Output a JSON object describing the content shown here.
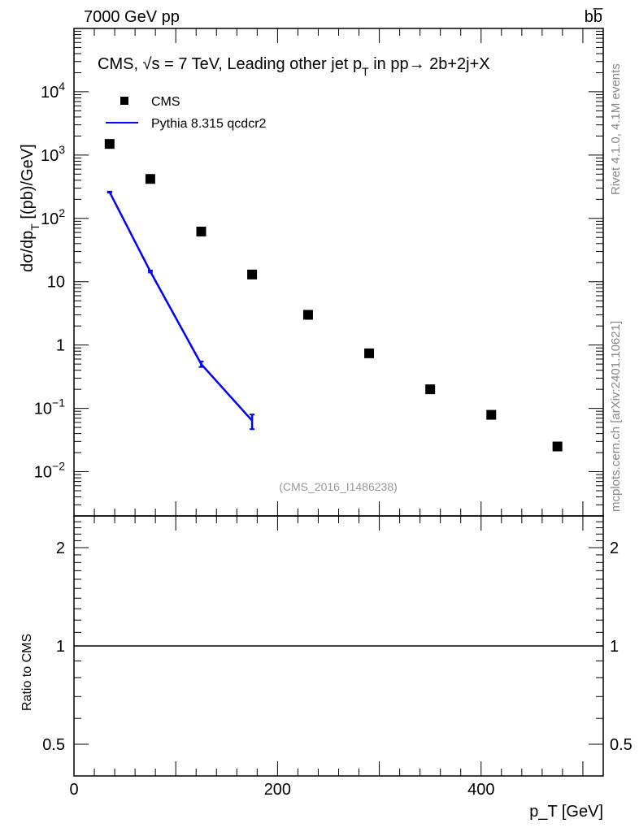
{
  "header": {
    "left": "7000 GeV pp",
    "right": "bb̅"
  },
  "side_labels": {
    "rivet": "Rivet 4.1.0,  4.1M events",
    "mcplots": "mcplots.cern.ch [arXiv:2401.10621]"
  },
  "chart_data": [
    {
      "type": "scatter",
      "title": "CMS, √s = 7 TeV, Leading other jet p_T in pp→  2b+2j+X",
      "title_parts": {
        "main": "CMS, √s = 7 TeV, Leading other jet p",
        "sub": "T",
        "rest": " in pp→  2b+2j+X"
      },
      "analysis_id": "(CMS_2016_I1486238)",
      "xlabel": "p_T [GeV]",
      "xlabel_parts": {
        "main": "p",
        "sub": "T",
        "rest": " [GeV]"
      },
      "ylabel": "dσ/dp_T  [(pb)/GeV]",
      "ylabel_parts": {
        "main": "dσ/dp",
        "sub": "T",
        "rest": "  [(pb)/GeV]"
      },
      "xlim": [
        0,
        520
      ],
      "ylim": [
        0.002,
        100000
      ],
      "yscale": "log",
      "x_ticks": [
        "0",
        "200",
        "400"
      ],
      "y_ticks": [
        {
          "v": 10000,
          "label": "10",
          "exp": "4"
        },
        {
          "v": 1000,
          "label": "10",
          "exp": "3"
        },
        {
          "v": 100,
          "label": "10",
          "exp": "2"
        },
        {
          "v": 10,
          "label": "10",
          "exp": ""
        },
        {
          "v": 1,
          "label": "1",
          "exp": ""
        },
        {
          "v": 0.1,
          "label": "10",
          "exp": "−1"
        },
        {
          "v": 0.01,
          "label": "10",
          "exp": "−2"
        }
      ],
      "legend": {
        "placement": "top-left",
        "entries": [
          "CMS",
          "Pythia 8.315 qcdcr2"
        ]
      },
      "series": [
        {
          "name": "CMS",
          "style": "marker",
          "color": "#000000",
          "x": [
            35,
            75,
            125,
            175,
            230,
            290,
            350,
            410,
            475
          ],
          "y": [
            1500,
            420,
            62,
            13,
            3.0,
            0.74,
            0.2,
            0.079,
            0.025
          ]
        },
        {
          "name": "Pythia 8.315 qcdcr2",
          "style": "line",
          "color": "#0000ff",
          "x": [
            35,
            75,
            125,
            175
          ],
          "y": [
            260,
            14.5,
            0.5,
            0.064
          ],
          "yerr_low": [
            255,
            14,
            0.45,
            0.047
          ],
          "yerr_high": [
            265,
            15,
            0.55,
            0.08
          ]
        }
      ]
    },
    {
      "type": "line",
      "ylabel": "Ratio to CMS",
      "xlim": [
        0,
        520
      ],
      "ylim": [
        0.4,
        2.5
      ],
      "yscale": "log",
      "y_ticks": [
        {
          "v": 2,
          "label": "2"
        },
        {
          "v": 1,
          "label": "1"
        },
        {
          "v": 0.5,
          "label": "0.5"
        }
      ],
      "reference_line": 1
    }
  ]
}
